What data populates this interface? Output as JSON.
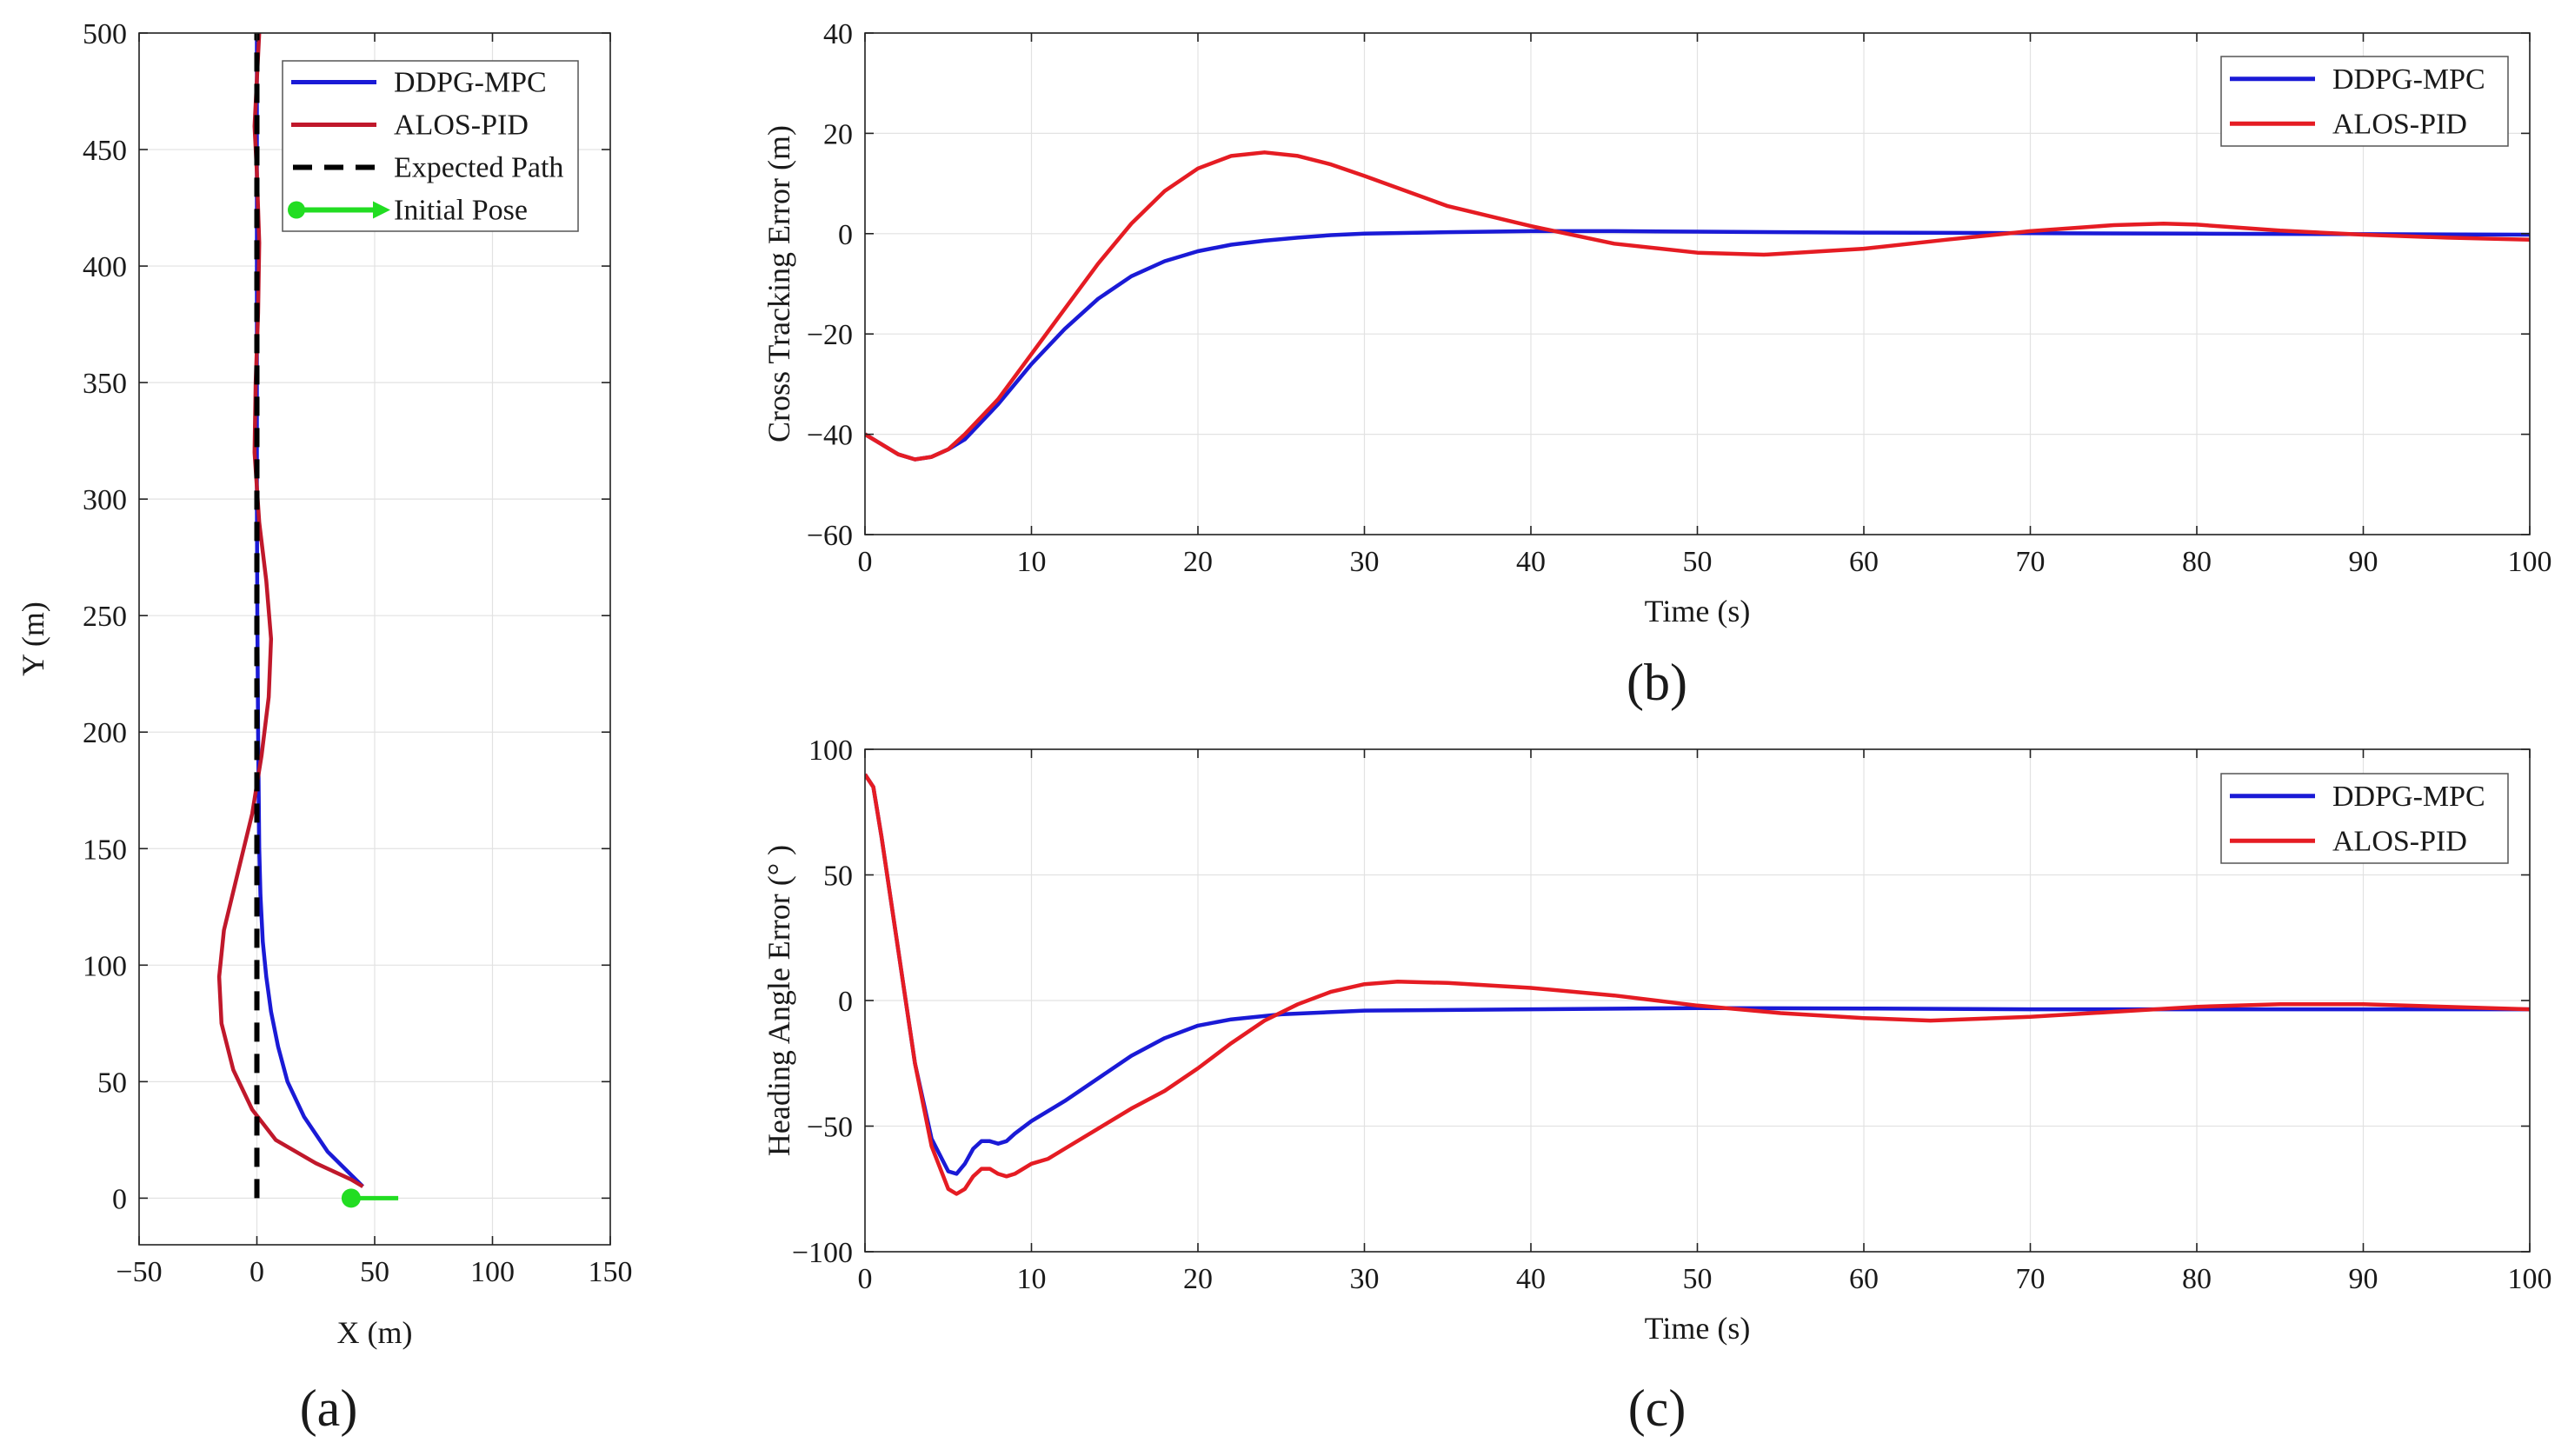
{
  "colors": {
    "ddpg": "#1a1ad6",
    "alos": "#e51c23",
    "alos_a": "#c0182b",
    "expected": "#000000",
    "initial": "#22dd22"
  },
  "panels": {
    "a": "(a)",
    "b": "(b)",
    "c": "(c)"
  },
  "chart_data": [
    {
      "id": "a",
      "type": "line",
      "title": "",
      "xlabel": "X (m)",
      "ylabel": "Y (m)",
      "xlim": [
        -50,
        150
      ],
      "ylim": [
        -20,
        500
      ],
      "xticks": [
        -50,
        0,
        50,
        100,
        150
      ],
      "xtick_labels": [
        "−50",
        "0",
        "50",
        "100",
        "150"
      ],
      "yticks": [
        0,
        50,
        100,
        150,
        200,
        250,
        300,
        350,
        400,
        450,
        500
      ],
      "ytick_labels": [
        "0",
        "50",
        "100",
        "150",
        "200",
        "250",
        "300",
        "350",
        "400",
        "450",
        "500"
      ],
      "grid": true,
      "legend": "top-right",
      "series": [
        {
          "name": "DDPG-MPC",
          "color": "ddpg",
          "style": "solid",
          "x": [
            45,
            40,
            30,
            20,
            13,
            9,
            6,
            4,
            2.5,
            1.5,
            1,
            0.5,
            0.2,
            0,
            0,
            0
          ],
          "y": [
            5,
            10,
            20,
            35,
            50,
            65,
            80,
            95,
            110,
            130,
            150,
            200,
            250,
            300,
            400,
            500
          ]
        },
        {
          "name": "ALOS-PID",
          "color": "alos_a",
          "style": "solid",
          "x": [
            45,
            40,
            25,
            8,
            -2,
            -10,
            -15,
            -16,
            -14,
            -8,
            -2,
            2,
            5,
            6,
            4,
            1,
            -1,
            -0.5,
            0.5,
            1,
            0,
            -1,
            0,
            1
          ],
          "y": [
            5,
            8,
            15,
            25,
            38,
            55,
            75,
            95,
            115,
            140,
            165,
            190,
            215,
            240,
            265,
            290,
            320,
            350,
            380,
            410,
            440,
            460,
            480,
            500
          ]
        },
        {
          "name": "Expected Path",
          "color": "expected",
          "style": "dashed",
          "x": [
            0,
            0
          ],
          "y": [
            0,
            500
          ]
        },
        {
          "name": "Initial Pose",
          "color": "initial",
          "style": "arrow",
          "x": [
            40,
            60
          ],
          "y": [
            0,
            0
          ]
        }
      ]
    },
    {
      "id": "b",
      "type": "line",
      "title": "",
      "xlabel": "Time (s)",
      "ylabel": "Cross Tracking Error (m)",
      "xlim": [
        0,
        100
      ],
      "ylim": [
        -60,
        40
      ],
      "xticks": [
        0,
        10,
        20,
        30,
        40,
        50,
        60,
        70,
        80,
        90,
        100
      ],
      "xtick_labels": [
        "0",
        "10",
        "20",
        "30",
        "40",
        "50",
        "60",
        "70",
        "80",
        "90",
        "100"
      ],
      "yticks": [
        -60,
        -40,
        -20,
        0,
        20,
        40
      ],
      "ytick_labels": [
        "−60",
        "−40",
        "−20",
        "0",
        "20",
        "40"
      ],
      "grid": true,
      "legend": "top-right",
      "series": [
        {
          "name": "DDPG-MPC",
          "color": "ddpg",
          "x": [
            0,
            1,
            2,
            3,
            4,
            5,
            6,
            8,
            10,
            12,
            14,
            16,
            18,
            20,
            22,
            24,
            26,
            28,
            30,
            35,
            40,
            45,
            50,
            60,
            70,
            80,
            90,
            100
          ],
          "y": [
            -40,
            -42,
            -44,
            -45,
            -44.5,
            -43,
            -41,
            -34,
            -26,
            -19,
            -13,
            -8.5,
            -5.5,
            -3.5,
            -2.2,
            -1.4,
            -0.8,
            -0.3,
            0,
            0.3,
            0.5,
            0.5,
            0.4,
            0.2,
            0.1,
            0,
            -0.1,
            -0.2
          ]
        },
        {
          "name": "ALOS-PID",
          "color": "alos",
          "x": [
            0,
            1,
            2,
            3,
            4,
            5,
            6,
            8,
            10,
            12,
            14,
            16,
            18,
            20,
            22,
            24,
            26,
            28,
            30,
            35,
            40,
            45,
            50,
            54,
            60,
            65,
            70,
            75,
            78,
            80,
            85,
            90,
            95,
            100
          ],
          "y": [
            -40,
            -42,
            -44,
            -45,
            -44.5,
            -43,
            -40,
            -33,
            -24,
            -15,
            -6,
            2,
            8.5,
            13,
            15.5,
            16.2,
            15.5,
            13.8,
            11.5,
            5.5,
            1.5,
            -2,
            -3.8,
            -4.2,
            -3,
            -1.2,
            0.5,
            1.7,
            2,
            1.8,
            0.6,
            -0.2,
            -0.8,
            -1.2
          ]
        }
      ]
    },
    {
      "id": "c",
      "type": "line",
      "title": "",
      "xlabel": "Time (s)",
      "ylabel": "Heading Angle Error (° )",
      "xlim": [
        0,
        100
      ],
      "ylim": [
        -100,
        100
      ],
      "xticks": [
        0,
        10,
        20,
        30,
        40,
        50,
        60,
        70,
        80,
        90,
        100
      ],
      "xtick_labels": [
        "0",
        "10",
        "20",
        "30",
        "40",
        "50",
        "60",
        "70",
        "80",
        "90",
        "100"
      ],
      "yticks": [
        -100,
        -50,
        0,
        50,
        100
      ],
      "ytick_labels": [
        "−100",
        "−50",
        "0",
        "50",
        "100"
      ],
      "grid": true,
      "legend": "top-right",
      "series": [
        {
          "name": "DDPG-MPC",
          "color": "ddpg",
          "x": [
            0,
            0.5,
            1,
            2,
            3,
            4,
            5,
            5.5,
            6,
            6.5,
            7,
            7.5,
            8,
            8.5,
            9,
            10,
            12,
            14,
            16,
            18,
            20,
            22,
            25,
            30,
            40,
            50,
            60,
            70,
            80,
            90,
            100
          ],
          "y": [
            90,
            85,
            65,
            20,
            -25,
            -55,
            -68,
            -69,
            -65,
            -59,
            -56,
            -56,
            -57,
            -56,
            -53,
            -48,
            -40,
            -31,
            -22,
            -15,
            -10,
            -7.5,
            -5.5,
            -4,
            -3.5,
            -3,
            -3.2,
            -3.5,
            -3.5,
            -3.5,
            -3.5
          ]
        },
        {
          "name": "ALOS-PID",
          "color": "alos",
          "x": [
            0,
            0.5,
            1,
            2,
            3,
            4,
            5,
            5.5,
            6,
            6.5,
            7,
            7.5,
            8,
            8.5,
            9,
            10,
            11,
            12,
            14,
            16,
            18,
            20,
            22,
            24,
            26,
            28,
            30,
            32,
            35,
            40,
            45,
            50,
            55,
            60,
            64,
            70,
            75,
            80,
            85,
            90,
            95,
            100
          ],
          "y": [
            90,
            85,
            65,
            20,
            -25,
            -58,
            -75,
            -77,
            -75,
            -70,
            -67,
            -67,
            -69,
            -70,
            -69,
            -65,
            -63,
            -59,
            -51,
            -43,
            -36,
            -27,
            -17,
            -8,
            -1.5,
            3.5,
            6.5,
            7.5,
            7,
            5,
            2,
            -2,
            -5,
            -7,
            -8,
            -6.5,
            -4.5,
            -2.5,
            -1.5,
            -1.5,
            -2.5,
            -3.5
          ]
        }
      ]
    }
  ]
}
